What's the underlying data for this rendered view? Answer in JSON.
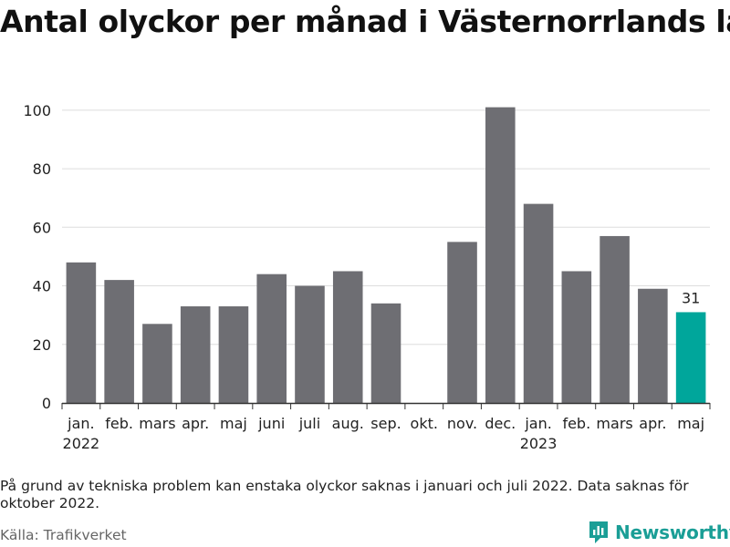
{
  "title": "Antal olyckor per månad i Västernorrlands län",
  "note": "På grund av tekniska problem kan enstaka olyckor saknas i januari och juli 2022. Data saknas för oktober 2022.",
  "source": "Källa: Trafikverket",
  "brand": {
    "name": "Newsworthy",
    "icon": "newsworthy-logo-icon",
    "color": "#1a9e96"
  },
  "colors": {
    "bar": "#6e6e73",
    "highlight": "#00a69b",
    "grid": "#dddddd",
    "axis": "#333333"
  },
  "chart_data": {
    "type": "bar",
    "categories": [
      "jan.",
      "feb.",
      "mars",
      "apr.",
      "maj",
      "juni",
      "juli",
      "aug.",
      "sep.",
      "okt.",
      "nov.",
      "dec.",
      "jan.",
      "feb.",
      "mars",
      "apr.",
      "maj"
    ],
    "year_labels": [
      {
        "index": 0,
        "label": "2022"
      },
      {
        "index": 12,
        "label": "2023"
      }
    ],
    "values": [
      48,
      42,
      27,
      33,
      33,
      44,
      40,
      45,
      34,
      null,
      55,
      101,
      68,
      45,
      57,
      39,
      31
    ],
    "highlight_index": 16,
    "data_labels": [
      {
        "index": 16,
        "label": "31"
      }
    ],
    "yticks": [
      0,
      20,
      40,
      60,
      80,
      100
    ],
    "ylim": [
      0,
      104
    ],
    "grid": true,
    "xlabel": "",
    "ylabel": ""
  }
}
